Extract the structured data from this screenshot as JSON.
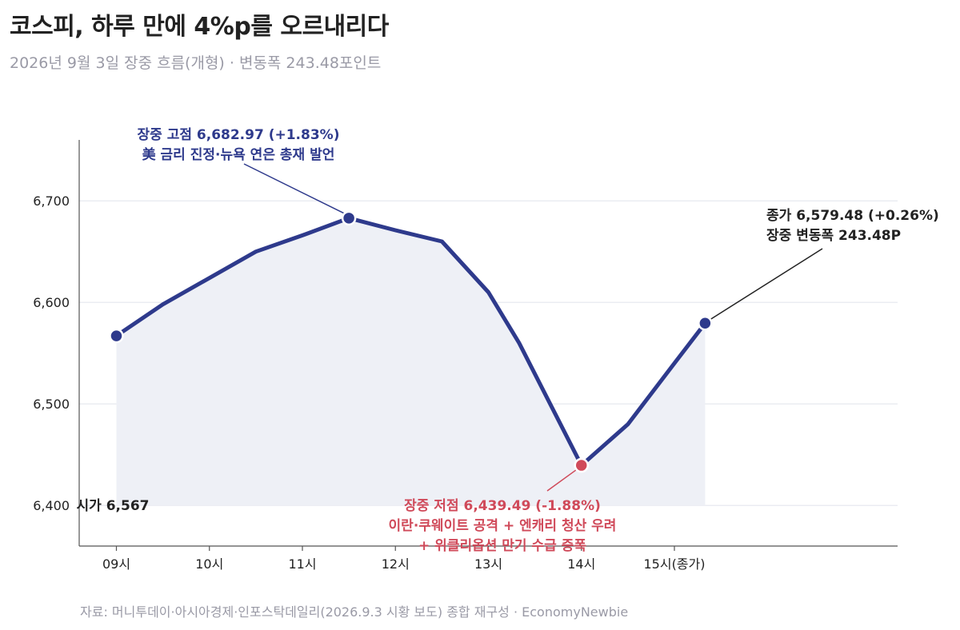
{
  "header": {
    "title": "코스피, 하루 만에 4%p를 오르내리다",
    "subtitle": "2026년 9월 3일 장중 흐름(개형) · 변동폭 243.48포인트"
  },
  "footer": {
    "source": "자료: 머니투데이·아시아경제·인포스탁데일리(2026.9.3 시황 보도) 종합 재구성 · EconomyNewbie"
  },
  "chart_data": {
    "type": "area",
    "title": "코스피, 하루 만에 4%p를 오르내리다",
    "subtitle": "2026년 9월 3일 장중 흐름(개형) · 변동폭 243.48포인트",
    "x_ticks": [
      {
        "label": "09시",
        "x": 9
      },
      {
        "label": "10시",
        "x": 10
      },
      {
        "label": "11시",
        "x": 11
      },
      {
        "label": "12시",
        "x": 12
      },
      {
        "label": "13시",
        "x": 13
      },
      {
        "label": "14시",
        "x": 14
      },
      {
        "label": "15시(종가)",
        "x": 15
      }
    ],
    "y_ticks": [
      {
        "label": "6,400",
        "y": 6400
      },
      {
        "label": "6,500",
        "y": 6500
      },
      {
        "label": "6,600",
        "y": 6600
      },
      {
        "label": "6,700",
        "y": 6700
      }
    ],
    "xlim": [
      8.6,
      17.4
    ],
    "ylim": [
      6360,
      6760
    ],
    "grid": true,
    "line_color": "#2e3a8c",
    "fill_color": "#eef0f6",
    "high_color": "#2e3a8c",
    "low_color": "#d04a5a",
    "close_color": "#222222",
    "series": [
      {
        "x": [
          9.0,
          9.5,
          10.0,
          10.5,
          11.0,
          11.5,
          12.0,
          12.5,
          13.0,
          13.33,
          14.0,
          14.5,
          15.0,
          15.33
        ],
        "y": [
          6567,
          6598,
          6624,
          6650,
          6666,
          6682.97,
          6671,
          6660,
          6610,
          6560,
          6439.49,
          6480,
          6540,
          6579.48
        ]
      }
    ],
    "markers": [
      {
        "x": 9.0,
        "y": 6567,
        "color": "#2e3a8c"
      },
      {
        "x": 11.5,
        "y": 6682.97,
        "color": "#2e3a8c"
      },
      {
        "x": 14.0,
        "y": 6439.49,
        "color": "#d04a5a"
      },
      {
        "x": 15.33,
        "y": 6579.48,
        "color": "#2e3a8c"
      }
    ],
    "annotations": {
      "open": "시가 6,567",
      "high_1": "장중 고점 6,682.97 (+1.83%)",
      "high_2": "美 금리 진정·뉴욕 연은 총재 발언",
      "low_1": "장중 저점 6,439.49 (-1.88%)",
      "low_2": "이란·쿠웨이트 공격 + 엔캐리 청산 우려",
      "low_3": "+ 위클리옵션 만기 수급 증폭",
      "close_1": "종가 6,579.48 (+0.26%)",
      "close_2": "장중 변동폭 243.48P"
    }
  }
}
